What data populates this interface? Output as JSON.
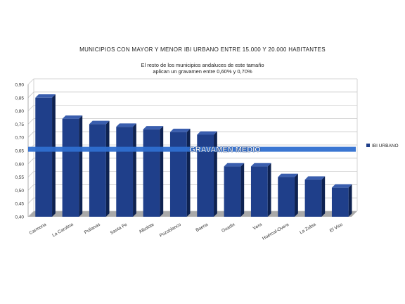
{
  "chart_data": {
    "type": "bar",
    "title": "MUNICIPIOS CON MAYOR Y MENOR IBI URBANO ENTRE 15.000 Y 20.000 HABITANTES",
    "subtitle_lines": [
      "El resto de los municipios andaluces de este tamaño",
      "aplican un gravamen entre 0,60% y 0,70%"
    ],
    "categories": [
      "Carmona",
      "La Carolina",
      "Pulianas",
      "Santa Fe",
      "Albolote",
      "Pozoblanco",
      "Baena",
      "Guadix",
      "Vera",
      "Huércal-Overa",
      "La Zubia",
      "El Viso"
    ],
    "series": [
      {
        "name": "IBI URBANO",
        "color": "#1f3f8a",
        "values": [
          0.85,
          0.77,
          0.75,
          0.74,
          0.73,
          0.72,
          0.71,
          0.59,
          0.59,
          0.55,
          0.54,
          0.51
        ]
      }
    ],
    "ylim": [
      0.4,
      0.9
    ],
    "yticks": [
      "0,40",
      "0,45",
      "0,50",
      "0,55",
      "0,60",
      "0,65",
      "0,70",
      "0,75",
      "0,80",
      "0,85",
      "0,90"
    ],
    "grid": true,
    "legend_position": "right",
    "reference_line": {
      "label": "GRAVAMEN MEDIO",
      "value": 0.655,
      "color": "#2f6fd0"
    }
  }
}
